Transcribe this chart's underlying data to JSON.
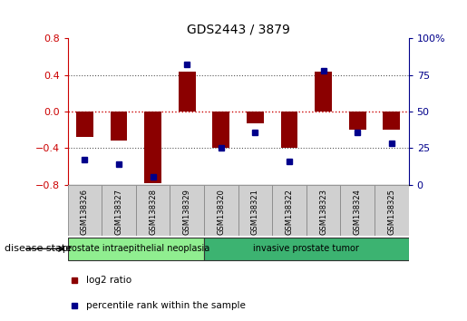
{
  "title": "GDS2443 / 3879",
  "samples": [
    "GSM138326",
    "GSM138327",
    "GSM138328",
    "GSM138329",
    "GSM138320",
    "GSM138321",
    "GSM138322",
    "GSM138323",
    "GSM138324",
    "GSM138325"
  ],
  "log2_ratio": [
    -0.28,
    -0.32,
    -0.78,
    0.44,
    -0.4,
    -0.13,
    -0.4,
    0.44,
    -0.2,
    -0.2
  ],
  "percentile_rank": [
    17,
    14,
    5,
    82,
    25,
    36,
    16,
    78,
    36,
    28
  ],
  "disease_groups": [
    {
      "label": "prostate intraepithelial neoplasia",
      "start": 0,
      "end": 4,
      "color": "#90ee90"
    },
    {
      "label": "invasive prostate tumor",
      "start": 4,
      "end": 10,
      "color": "#3cb371"
    }
  ],
  "ylim_left": [
    -0.8,
    0.8
  ],
  "ylim_right": [
    0,
    100
  ],
  "yticks_left": [
    -0.8,
    -0.4,
    0.0,
    0.4,
    0.8
  ],
  "yticks_right": [
    0,
    25,
    50,
    75,
    100
  ],
  "bar_color": "#8b0000",
  "dot_color": "#00008b",
  "hline_color": "#cc0000",
  "dotted_color": "#555555",
  "legend_bar_label": "log2 ratio",
  "legend_dot_label": "percentile rank within the sample",
  "disease_state_label": "disease state",
  "n_neoplasia": 4,
  "n_total": 10
}
